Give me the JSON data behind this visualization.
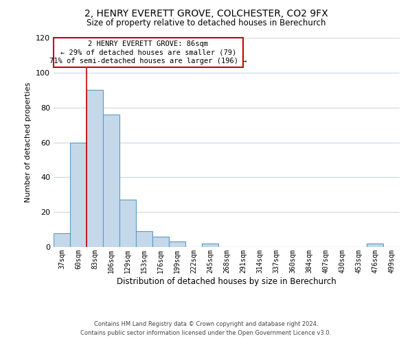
{
  "title": "2, HENRY EVERETT GROVE, COLCHESTER, CO2 9FX",
  "subtitle": "Size of property relative to detached houses in Berechurch",
  "xlabel": "Distribution of detached houses by size in Berechurch",
  "ylabel": "Number of detached properties",
  "bar_labels": [
    "37sqm",
    "60sqm",
    "83sqm",
    "106sqm",
    "129sqm",
    "153sqm",
    "176sqm",
    "199sqm",
    "222sqm",
    "245sqm",
    "268sqm",
    "291sqm",
    "314sqm",
    "337sqm",
    "360sqm",
    "384sqm",
    "407sqm",
    "430sqm",
    "453sqm",
    "476sqm",
    "499sqm"
  ],
  "bar_heights": [
    8,
    60,
    90,
    76,
    27,
    9,
    6,
    3,
    0,
    2,
    0,
    0,
    0,
    0,
    0,
    0,
    0,
    0,
    0,
    2,
    0
  ],
  "bar_color": "#c5d8ea",
  "bar_edge_color": "#5a9abf",
  "ylim": [
    0,
    120
  ],
  "yticks": [
    0,
    20,
    40,
    60,
    80,
    100,
    120
  ],
  "vline_color": "#cc0000",
  "annotation_title": "2 HENRY EVERETT GROVE: 86sqm",
  "annotation_line1": "← 29% of detached houses are smaller (79)",
  "annotation_line2": "71% of semi-detached houses are larger (196) →",
  "annotation_box_color": "#cc0000",
  "footer_line1": "Contains HM Land Registry data © Crown copyright and database right 2024.",
  "footer_line2": "Contains public sector information licensed under the Open Government Licence v3.0.",
  "background_color": "#ffffff",
  "grid_color": "#c8d8e8"
}
